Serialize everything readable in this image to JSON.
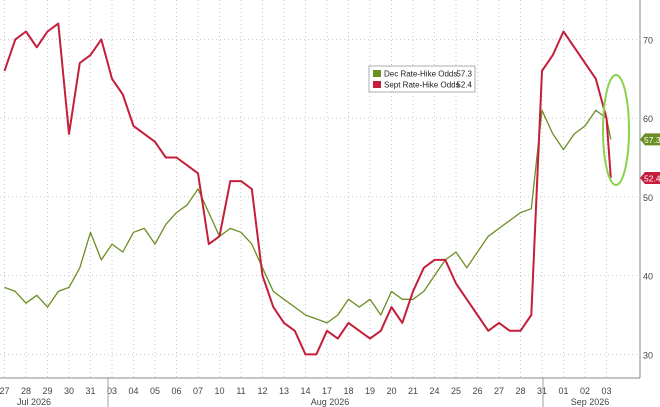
{
  "chart_data": {
    "type": "line",
    "x_tick_labels": [
      "27",
      "28",
      "29",
      "30",
      "31",
      "03",
      "04",
      "05",
      "06",
      "07",
      "10",
      "11",
      "12",
      "13",
      "14",
      "17",
      "18",
      "19",
      "20",
      "21",
      "24",
      "25",
      "26",
      "27",
      "28",
      "31",
      "01",
      "02",
      "03"
    ],
    "month_labels": [
      "Jul 2026",
      "Aug 2026",
      "Sep 2026"
    ],
    "y_ticks": [
      30,
      40,
      50,
      60,
      70
    ],
    "ylim": [
      27,
      75
    ],
    "grid": true,
    "legend_position": "top-center",
    "series": [
      {
        "name": "Dec Rate-Hike Odds",
        "color": "#6b8e23",
        "last_value_label": "57.3",
        "values": [
          [
            0,
            38.5
          ],
          [
            0.5,
            38
          ],
          [
            1,
            36.5
          ],
          [
            1.5,
            37.5
          ],
          [
            2,
            36
          ],
          [
            2.5,
            38
          ],
          [
            3,
            38.5
          ],
          [
            3.5,
            41
          ],
          [
            4,
            45.5
          ],
          [
            4.5,
            42
          ],
          [
            5,
            44
          ],
          [
            5.5,
            43
          ],
          [
            6,
            45.5
          ],
          [
            6.5,
            46
          ],
          [
            7,
            44
          ],
          [
            7.5,
            46.5
          ],
          [
            8,
            48
          ],
          [
            8.5,
            49
          ],
          [
            9,
            51
          ],
          [
            9.5,
            48
          ],
          [
            10,
            45
          ],
          [
            10.5,
            46
          ],
          [
            11,
            45.5
          ],
          [
            11.5,
            44
          ],
          [
            12,
            41
          ],
          [
            12.5,
            38
          ],
          [
            13,
            37
          ],
          [
            13.5,
            36
          ],
          [
            14,
            35
          ],
          [
            14.5,
            34.5
          ],
          [
            15,
            34
          ],
          [
            15.5,
            35
          ],
          [
            16,
            37
          ],
          [
            16.5,
            36
          ],
          [
            17,
            37
          ],
          [
            17.5,
            35
          ],
          [
            18,
            38
          ],
          [
            18.5,
            37
          ],
          [
            19,
            37
          ],
          [
            19.5,
            38
          ],
          [
            20,
            40
          ],
          [
            20.5,
            42
          ],
          [
            21,
            43
          ],
          [
            21.5,
            41
          ],
          [
            22,
            43
          ],
          [
            22.5,
            45
          ],
          [
            23,
            46
          ],
          [
            23.5,
            47
          ],
          [
            24,
            48
          ],
          [
            24.5,
            48.5
          ],
          [
            25,
            61
          ],
          [
            25.5,
            58
          ],
          [
            26,
            56
          ],
          [
            26.5,
            58
          ],
          [
            27,
            59
          ],
          [
            27.5,
            61
          ],
          [
            28,
            60
          ],
          [
            28.2,
            57.3
          ]
        ]
      },
      {
        "name": "Sept Rate-Hike Odds",
        "color": "#c41e3a",
        "last_value_label": "52.4",
        "values": [
          [
            0,
            66
          ],
          [
            0.5,
            70
          ],
          [
            1,
            71
          ],
          [
            1.5,
            69
          ],
          [
            2,
            71
          ],
          [
            2.5,
            72
          ],
          [
            3,
            58
          ],
          [
            3.5,
            67
          ],
          [
            4,
            68
          ],
          [
            4.5,
            70
          ],
          [
            5,
            65
          ],
          [
            5.5,
            63
          ],
          [
            6,
            59
          ],
          [
            6.5,
            58
          ],
          [
            7,
            57
          ],
          [
            7.5,
            55
          ],
          [
            8,
            55
          ],
          [
            8.5,
            54
          ],
          [
            9,
            53
          ],
          [
            9.5,
            44
          ],
          [
            10,
            45
          ],
          [
            10.5,
            52
          ],
          [
            11,
            52
          ],
          [
            11.5,
            51
          ],
          [
            12,
            40
          ],
          [
            12.5,
            36
          ],
          [
            13,
            34
          ],
          [
            13.5,
            33
          ],
          [
            14,
            30
          ],
          [
            14.5,
            30
          ],
          [
            15,
            33
          ],
          [
            15.5,
            32
          ],
          [
            16,
            34
          ],
          [
            16.5,
            33
          ],
          [
            17,
            32
          ],
          [
            17.5,
            33
          ],
          [
            18,
            36
          ],
          [
            18.5,
            34
          ],
          [
            19,
            38
          ],
          [
            19.5,
            41
          ],
          [
            20,
            42
          ],
          [
            20.5,
            42
          ],
          [
            21,
            39
          ],
          [
            21.5,
            37
          ],
          [
            22,
            35
          ],
          [
            22.5,
            33
          ],
          [
            23,
            34
          ],
          [
            23.5,
            33
          ],
          [
            24,
            33
          ],
          [
            24.5,
            35
          ],
          [
            25,
            66
          ],
          [
            25.5,
            68
          ],
          [
            26,
            71
          ],
          [
            26.5,
            69
          ],
          [
            27,
            67
          ],
          [
            27.5,
            65
          ],
          [
            28,
            60
          ],
          [
            28.2,
            52.4
          ]
        ]
      }
    ]
  }
}
